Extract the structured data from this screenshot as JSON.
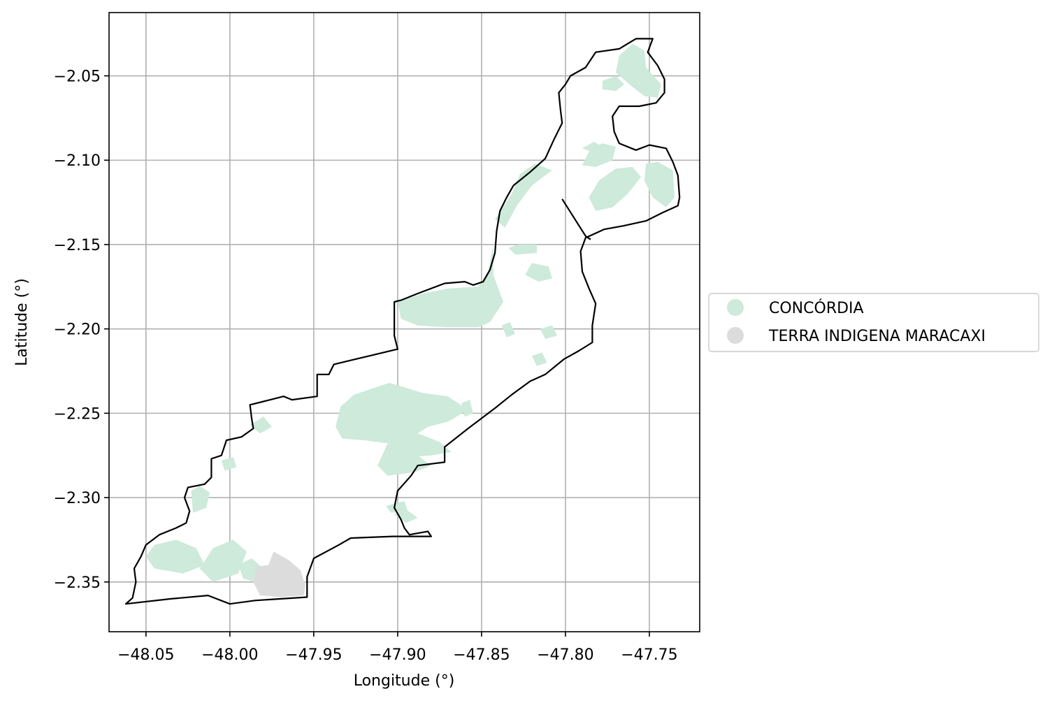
{
  "chart_data": {
    "type": "map",
    "xlabel": "Longitude (°)",
    "ylabel": "Latitude (°)",
    "xlim": [
      -48.072,
      -47.72
    ],
    "ylim": [
      -2.3795,
      -2.0125
    ],
    "xticks": [
      -48.05,
      -48.0,
      -47.95,
      -47.9,
      -47.85,
      -47.8,
      -47.75
    ],
    "yticks": [
      -2.05,
      -2.1,
      -2.15,
      -2.2,
      -2.25,
      -2.3,
      -2.35
    ],
    "xtick_labels": [
      "−48.05",
      "−48.00",
      "−47.95",
      "−47.90",
      "−47.85",
      "−47.80",
      "−47.75"
    ],
    "ytick_labels": [
      "−2.05",
      "−2.10",
      "−2.15",
      "−2.20",
      "−2.25",
      "−2.30",
      "−2.35"
    ],
    "grid": true,
    "legend": {
      "placement": "center-left outside",
      "entries": [
        {
          "label": "CONCÓRDIA",
          "color": "#cdeadb"
        },
        {
          "label": "TERRA INDIGENA MARACAXI",
          "color": "#dcdcdc"
        }
      ]
    },
    "colors": {
      "boundary": "#000000",
      "grid": "#b0b0b0"
    },
    "layers": {
      "boundary": [
        [
          -48.062,
          -2.363
        ],
        [
          -48.058,
          -2.3595
        ],
        [
          -48.056,
          -2.35
        ],
        [
          -48.057,
          -2.342
        ],
        [
          -48.053,
          -2.335
        ],
        [
          -48.05,
          -2.328
        ],
        [
          -48.042,
          -2.322
        ],
        [
          -48.032,
          -2.318
        ],
        [
          -48.026,
          -2.315
        ],
        [
          -48.024,
          -2.308
        ],
        [
          -48.027,
          -2.3
        ],
        [
          -48.025,
          -2.294
        ],
        [
          -48.015,
          -2.292
        ],
        [
          -48.011,
          -2.288
        ],
        [
          -48.011,
          -2.277
        ],
        [
          -48.005,
          -2.275
        ],
        [
          -48.002,
          -2.266
        ],
        [
          -47.993,
          -2.264
        ],
        [
          -47.986,
          -2.259
        ],
        [
          -47.987,
          -2.253
        ],
        [
          -47.988,
          -2.245
        ],
        [
          -47.98,
          -2.243
        ],
        [
          -47.968,
          -2.24
        ],
        [
          -47.963,
          -2.242
        ],
        [
          -47.948,
          -2.24
        ],
        [
          -47.948,
          -2.227
        ],
        [
          -47.941,
          -2.227
        ],
        [
          -47.938,
          -2.221
        ],
        [
          -47.9,
          -2.212
        ],
        [
          -47.902,
          -2.204
        ],
        [
          -47.902,
          -2.184
        ],
        [
          -47.898,
          -2.183
        ],
        [
          -47.888,
          -2.179
        ],
        [
          -47.872,
          -2.173
        ],
        [
          -47.86,
          -2.172
        ],
        [
          -47.855,
          -2.174
        ],
        [
          -47.849,
          -2.172
        ],
        [
          -47.845,
          -2.165
        ],
        [
          -47.842,
          -2.155
        ],
        [
          -47.841,
          -2.142
        ],
        [
          -47.839,
          -2.13
        ],
        [
          -47.835,
          -2.122
        ],
        [
          -47.831,
          -2.115
        ],
        [
          -47.821,
          -2.107
        ],
        [
          -47.812,
          -2.099
        ],
        [
          -47.807,
          -2.088
        ],
        [
          -47.802,
          -2.078
        ],
        [
          -47.803,
          -2.07
        ],
        [
          -47.804,
          -2.06
        ],
        [
          -47.8,
          -2.055
        ],
        [
          -47.797,
          -2.05
        ],
        [
          -47.788,
          -2.045
        ],
        [
          -47.782,
          -2.036
        ],
        [
          -47.768,
          -2.034
        ],
        [
          -47.758,
          -2.028
        ],
        [
          -47.748,
          -2.028
        ],
        [
          -47.751,
          -2.036
        ],
        [
          -47.745,
          -2.044
        ],
        [
          -47.741,
          -2.052
        ],
        [
          -47.741,
          -2.06
        ],
        [
          -47.746,
          -2.066
        ],
        [
          -47.756,
          -2.068
        ],
        [
          -47.768,
          -2.068
        ],
        [
          -47.772,
          -2.074
        ],
        [
          -47.771,
          -2.083
        ],
        [
          -47.768,
          -2.09
        ],
        [
          -47.758,
          -2.094
        ],
        [
          -47.75,
          -2.091
        ],
        [
          -47.74,
          -2.093
        ],
        [
          -47.736,
          -2.101
        ],
        [
          -47.733,
          -2.109
        ],
        [
          -47.732,
          -2.122
        ],
        [
          -47.733,
          -2.127
        ],
        [
          -47.742,
          -2.131
        ],
        [
          -47.752,
          -2.136
        ],
        [
          -47.766,
          -2.139
        ],
        [
          -47.777,
          -2.141
        ],
        [
          -47.788,
          -2.146
        ],
        [
          -47.791,
          -2.154
        ],
        [
          -47.79,
          -2.166
        ],
        [
          -47.786,
          -2.176
        ],
        [
          -47.782,
          -2.185
        ],
        [
          -47.784,
          -2.198
        ],
        [
          -47.784,
          -2.208
        ],
        [
          -47.792,
          -2.213
        ],
        [
          -47.801,
          -2.218
        ],
        [
          -47.812,
          -2.227
        ],
        [
          -47.821,
          -2.231
        ],
        [
          -47.832,
          -2.239
        ],
        [
          -47.842,
          -2.247
        ],
        [
          -47.858,
          -2.259
        ],
        [
          -47.872,
          -2.27
        ],
        [
          -47.872,
          -2.279
        ],
        [
          -47.888,
          -2.281
        ],
        [
          -47.892,
          -2.287
        ],
        [
          -47.9,
          -2.296
        ],
        [
          -47.902,
          -2.306
        ],
        [
          -47.898,
          -2.313
        ],
        [
          -47.896,
          -2.318
        ],
        [
          -47.893,
          -2.322
        ],
        [
          -47.882,
          -2.32
        ],
        [
          -47.88,
          -2.323
        ],
        [
          -47.887,
          -2.323
        ],
        [
          -47.903,
          -2.323
        ],
        [
          -47.928,
          -2.324
        ],
        [
          -47.935,
          -2.328
        ],
        [
          -47.95,
          -2.336
        ],
        [
          -47.954,
          -2.347
        ],
        [
          -47.954,
          -2.359
        ],
        [
          -47.985,
          -2.361
        ],
        [
          -48.0,
          -2.363
        ],
        [
          -48.013,
          -2.358
        ],
        [
          -48.035,
          -2.36
        ],
        [
          -48.062,
          -2.363
        ]
      ],
      "notch": [
        [
          -47.802,
          -2.123
        ],
        [
          -47.788,
          -2.145
        ],
        [
          -47.785,
          -2.147
        ]
      ],
      "concordia": [
        [
          [
            -47.9,
            -2.184
          ],
          [
            -47.885,
            -2.179
          ],
          [
            -47.87,
            -2.176
          ],
          [
            -47.852,
            -2.175
          ],
          [
            -47.846,
            -2.166
          ],
          [
            -47.843,
            -2.15
          ],
          [
            -47.843,
            -2.168
          ],
          [
            -47.837,
            -2.184
          ],
          [
            -47.845,
            -2.196
          ],
          [
            -47.852,
            -2.199
          ],
          [
            -47.872,
            -2.199
          ],
          [
            -47.888,
            -2.198
          ],
          [
            -47.898,
            -2.194
          ]
        ],
        [
          [
            -47.926,
            -2.239
          ],
          [
            -47.905,
            -2.232
          ],
          [
            -47.898,
            -2.234
          ],
          [
            -47.885,
            -2.238
          ],
          [
            -47.87,
            -2.24
          ],
          [
            -47.858,
            -2.248
          ],
          [
            -47.87,
            -2.255
          ],
          [
            -47.882,
            -2.258
          ],
          [
            -47.888,
            -2.262
          ],
          [
            -47.875,
            -2.267
          ],
          [
            -47.868,
            -2.273
          ],
          [
            -47.88,
            -2.275
          ],
          [
            -47.895,
            -2.276
          ],
          [
            -47.905,
            -2.268
          ],
          [
            -47.92,
            -2.266
          ],
          [
            -47.933,
            -2.265
          ],
          [
            -47.937,
            -2.258
          ],
          [
            -47.934,
            -2.246
          ]
        ],
        [
          [
            -47.906,
            -2.268
          ],
          [
            -47.892,
            -2.272
          ],
          [
            -47.88,
            -2.281
          ],
          [
            -47.89,
            -2.285
          ],
          [
            -47.906,
            -2.287
          ],
          [
            -47.912,
            -2.281
          ]
        ],
        [
          [
            -47.834,
            -2.152
          ],
          [
            -47.828,
            -2.15
          ],
          [
            -47.817,
            -2.15
          ],
          [
            -47.817,
            -2.155
          ],
          [
            -47.83,
            -2.156
          ]
        ],
        [
          [
            -47.82,
            -2.161
          ],
          [
            -47.81,
            -2.163
          ],
          [
            -47.808,
            -2.17
          ],
          [
            -47.816,
            -2.172
          ],
          [
            -47.824,
            -2.168
          ]
        ],
        [
          [
            -47.842,
            -2.135
          ],
          [
            -47.832,
            -2.12
          ],
          [
            -47.827,
            -2.108
          ],
          [
            -47.818,
            -2.102
          ],
          [
            -47.808,
            -2.106
          ],
          [
            -47.82,
            -2.115
          ],
          [
            -47.829,
            -2.127
          ],
          [
            -47.836,
            -2.14
          ]
        ],
        [
          [
            -47.78,
            -2.112
          ],
          [
            -47.77,
            -2.105
          ],
          [
            -47.76,
            -2.104
          ],
          [
            -47.755,
            -2.11
          ],
          [
            -47.763,
            -2.12
          ],
          [
            -47.772,
            -2.128
          ],
          [
            -47.782,
            -2.13
          ],
          [
            -47.786,
            -2.122
          ]
        ],
        [
          [
            -47.752,
            -2.102
          ],
          [
            -47.745,
            -2.101
          ],
          [
            -47.736,
            -2.106
          ],
          [
            -47.735,
            -2.122
          ],
          [
            -47.74,
            -2.128
          ],
          [
            -47.748,
            -2.122
          ],
          [
            -47.753,
            -2.112
          ]
        ],
        [
          [
            -47.79,
            -2.103
          ],
          [
            -47.785,
            -2.093
          ],
          [
            -47.778,
            -2.09
          ],
          [
            -47.77,
            -2.092
          ],
          [
            -47.772,
            -2.1
          ],
          [
            -47.782,
            -2.104
          ]
        ],
        [
          [
            -47.768,
            -2.038
          ],
          [
            -47.76,
            -2.031
          ],
          [
            -47.753,
            -2.035
          ],
          [
            -47.752,
            -2.045
          ],
          [
            -47.743,
            -2.055
          ],
          [
            -47.745,
            -2.063
          ],
          [
            -47.753,
            -2.062
          ],
          [
            -47.762,
            -2.055
          ],
          [
            -47.77,
            -2.048
          ]
        ],
        [
          [
            -47.778,
            -2.053
          ],
          [
            -47.77,
            -2.05
          ],
          [
            -47.765,
            -2.055
          ],
          [
            -47.77,
            -2.059
          ],
          [
            -47.778,
            -2.058
          ]
        ],
        [
          [
            -47.79,
            -2.093
          ],
          [
            -47.783,
            -2.089
          ],
          [
            -47.778,
            -2.092
          ],
          [
            -47.782,
            -2.096
          ]
        ],
        [
          [
            -47.87,
            -2.186
          ],
          [
            -47.864,
            -2.184
          ],
          [
            -47.86,
            -2.19
          ],
          [
            -47.866,
            -2.192
          ]
        ],
        [
          [
            -48.045,
            -2.328
          ],
          [
            -48.032,
            -2.325
          ],
          [
            -48.02,
            -2.33
          ],
          [
            -48.015,
            -2.34
          ],
          [
            -48.028,
            -2.345
          ],
          [
            -48.045,
            -2.342
          ],
          [
            -48.05,
            -2.335
          ]
        ],
        [
          [
            -48.01,
            -2.33
          ],
          [
            -47.998,
            -2.325
          ],
          [
            -47.99,
            -2.332
          ],
          [
            -47.995,
            -2.345
          ],
          [
            -48.01,
            -2.35
          ],
          [
            -48.018,
            -2.342
          ]
        ],
        [
          [
            -47.995,
            -2.34
          ],
          [
            -47.987,
            -2.336
          ],
          [
            -47.98,
            -2.342
          ],
          [
            -47.985,
            -2.35
          ],
          [
            -47.992,
            -2.348
          ]
        ],
        [
          [
            -48.023,
            -2.296
          ],
          [
            -48.018,
            -2.293
          ],
          [
            -48.012,
            -2.297
          ],
          [
            -48.014,
            -2.306
          ],
          [
            -48.022,
            -2.309
          ]
        ],
        [
          [
            -47.988,
            -2.257
          ],
          [
            -47.98,
            -2.252
          ],
          [
            -47.975,
            -2.258
          ],
          [
            -47.982,
            -2.262
          ]
        ],
        [
          [
            -48.005,
            -2.278
          ],
          [
            -47.998,
            -2.276
          ],
          [
            -47.996,
            -2.282
          ],
          [
            -48.003,
            -2.284
          ]
        ],
        [
          [
            -47.902,
            -2.31
          ],
          [
            -47.895,
            -2.307
          ],
          [
            -47.888,
            -2.312
          ],
          [
            -47.895,
            -2.315
          ]
        ],
        [
          [
            -47.907,
            -2.305
          ],
          [
            -47.896,
            -2.302
          ],
          [
            -47.894,
            -2.308
          ],
          [
            -47.904,
            -2.309
          ]
        ],
        [
          [
            -47.838,
            -2.198
          ],
          [
            -47.833,
            -2.196
          ],
          [
            -47.83,
            -2.203
          ],
          [
            -47.835,
            -2.205
          ]
        ],
        [
          [
            -47.815,
            -2.2
          ],
          [
            -47.808,
            -2.198
          ],
          [
            -47.805,
            -2.204
          ],
          [
            -47.812,
            -2.206
          ]
        ],
        [
          [
            -47.862,
            -2.244
          ],
          [
            -47.857,
            -2.242
          ],
          [
            -47.855,
            -2.25
          ],
          [
            -47.86,
            -2.252
          ]
        ],
        [
          [
            -47.82,
            -2.216
          ],
          [
            -47.814,
            -2.214
          ],
          [
            -47.811,
            -2.22
          ],
          [
            -47.817,
            -2.222
          ]
        ]
      ],
      "maracaxi": [
        [
          [
            -47.984,
            -2.341
          ],
          [
            -47.977,
            -2.34
          ],
          [
            -47.974,
            -2.332
          ],
          [
            -47.965,
            -2.337
          ],
          [
            -47.958,
            -2.343
          ],
          [
            -47.955,
            -2.352
          ],
          [
            -47.956,
            -2.358
          ],
          [
            -47.97,
            -2.359
          ],
          [
            -47.982,
            -2.358
          ],
          [
            -47.986,
            -2.35
          ]
        ]
      ]
    }
  }
}
